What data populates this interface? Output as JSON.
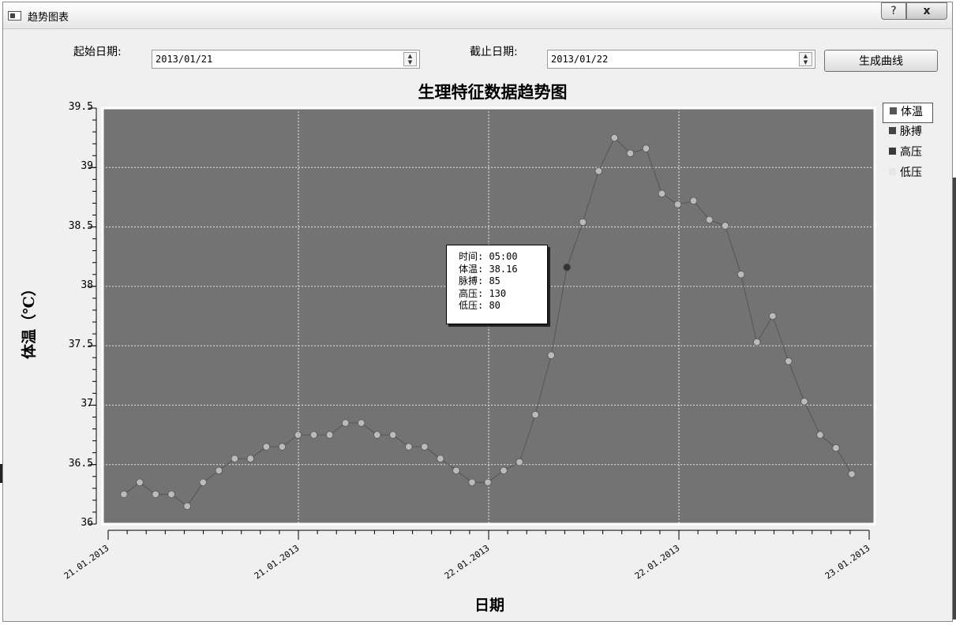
{
  "window": {
    "title": "趋势图表",
    "help_glyph": "?",
    "close_glyph": "x"
  },
  "toolbar": {
    "start_label": "起始日期:",
    "start_value": "2013/01/21",
    "end_label": "截止日期:",
    "end_value": "2013/01/22",
    "generate_label": "生成曲线"
  },
  "chart": {
    "title": "生理特征数据趋势图",
    "ylabel": "体温（℃）",
    "xlabel": "日期",
    "yticks": [
      "39.5",
      "39",
      "38.5",
      "38",
      "37.5",
      "37",
      "36.5",
      "36"
    ],
    "xticks": [
      "21.01.2013",
      "21.01.2013",
      "22.01.2013",
      "22.01.2013",
      "23.01.2013"
    ],
    "legend": [
      {
        "label": "体温",
        "color": "#555555"
      },
      {
        "label": "脉搏",
        "color": "#444444"
      },
      {
        "label": "高压",
        "color": "#3a3a3a"
      },
      {
        "label": "低压",
        "color": "#e6e6e6"
      }
    ],
    "tooltip": {
      "time": "时间: 05:00",
      "temp": "体温: 38.16",
      "pulse": "脉搏: 85",
      "high": "高压: 130",
      "low": "低压: 80"
    },
    "plot_bg": "#737373",
    "line_color": "#555555",
    "marker_color": "#bbbbbb"
  },
  "chart_data": {
    "type": "line",
    "title": "生理特征数据趋势图",
    "xlabel": "日期",
    "ylabel": "体温（℃）",
    "ylim": [
      36,
      39.5
    ],
    "grid": true,
    "legend_position": "right",
    "series": [
      {
        "name": "体温",
        "values": [
          36.25,
          36.35,
          36.25,
          36.25,
          36.15,
          36.35,
          36.45,
          36.55,
          36.55,
          36.65,
          36.65,
          36.75,
          36.75,
          36.75,
          36.85,
          36.85,
          36.75,
          36.75,
          36.65,
          36.65,
          36.55,
          36.45,
          36.35,
          36.35,
          36.45,
          36.52,
          36.92,
          37.42,
          38.16,
          38.54,
          38.97,
          39.25,
          39.12,
          39.16,
          38.78,
          38.69,
          38.72,
          38.56,
          38.51,
          38.1,
          37.53,
          37.75,
          37.37,
          37.03,
          36.75,
          36.64,
          36.42
        ]
      }
    ],
    "highlight_index": 28
  }
}
